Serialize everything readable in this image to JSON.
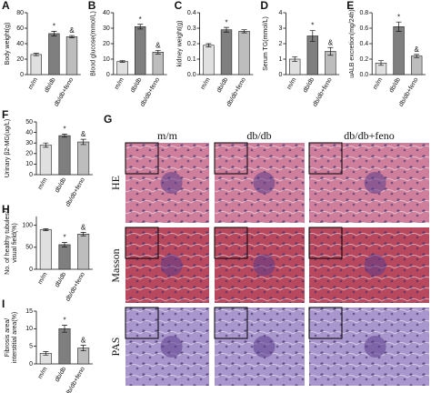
{
  "chart_data": [
    {
      "type": "bar",
      "panel": "A",
      "y_label": "Body weight(g)",
      "categories": [
        "m/m",
        "db/db",
        "db/db+feno"
      ],
      "values": [
        26,
        53,
        49
      ],
      "errors": [
        1.5,
        3,
        1.5
      ],
      "colors": [
        "#e0e0e0",
        "#7f7f7f",
        "#bdbdbd"
      ],
      "ylim": [
        0,
        80
      ],
      "yticks": [
        0,
        20,
        40,
        60,
        80
      ],
      "annotations": [
        {
          "text": "*",
          "x": "db/db"
        },
        {
          "text": "&",
          "x": "db/db+feno"
        }
      ]
    },
    {
      "type": "bar",
      "panel": "B",
      "y_label": "Blood glucose(mmol/L)",
      "categories": [
        "m/m",
        "db/db",
        "db/db+feno"
      ],
      "values": [
        8.5,
        31,
        14.5
      ],
      "errors": [
        0.5,
        1.5,
        1.2
      ],
      "colors": [
        "#e0e0e0",
        "#7f7f7f",
        "#bdbdbd"
      ],
      "ylim": [
        0,
        40
      ],
      "yticks": [
        0,
        10,
        20,
        30,
        40
      ],
      "annotations": [
        {
          "text": "*",
          "x": "db/db"
        },
        {
          "text": "&",
          "x": "db/db+feno"
        }
      ]
    },
    {
      "type": "bar",
      "panel": "C",
      "y_label": "kidney weight(g)",
      "categories": [
        "m/m",
        "db/db",
        "db/db+feno"
      ],
      "values": [
        0.19,
        0.29,
        0.28
      ],
      "errors": [
        0.01,
        0.015,
        0.01
      ],
      "colors": [
        "#e0e0e0",
        "#7f7f7f",
        "#bdbdbd"
      ],
      "ylim": [
        0,
        0.4
      ],
      "yticks": [
        {
          "value": 0,
          "label": "0.0"
        },
        0.1,
        0.2,
        0.3,
        0.4
      ],
      "annotations": [
        {
          "text": "*",
          "x": "db/db"
        }
      ]
    },
    {
      "type": "bar",
      "panel": "D",
      "y_label": "Serum TG(mmol/L)",
      "categories": [
        "m/m",
        "db/db",
        "db/db+feno"
      ],
      "values": [
        1.0,
        2.5,
        1.5
      ],
      "errors": [
        0.15,
        0.35,
        0.25
      ],
      "colors": [
        "#e0e0e0",
        "#7f7f7f",
        "#bdbdbd"
      ],
      "ylim": [
        0,
        4
      ],
      "yticks": [
        0,
        1,
        2,
        3,
        4
      ],
      "annotations": [
        {
          "text": "*",
          "x": "db/db"
        },
        {
          "text": "&",
          "x": "db/db+feno"
        }
      ]
    },
    {
      "type": "bar",
      "panel": "E",
      "y_label": "uALB excretion(mg/24h)",
      "categories": [
        "m/m",
        "db/db",
        "db/db+feno"
      ],
      "values": [
        0.15,
        0.62,
        0.24
      ],
      "errors": [
        0.03,
        0.06,
        0.02
      ],
      "colors": [
        "#e0e0e0",
        "#7f7f7f",
        "#bdbdbd"
      ],
      "ylim": [
        0,
        0.8
      ],
      "yticks": [
        {
          "value": 0,
          "label": "0.0"
        },
        0.2,
        0.4,
        0.6,
        0.8
      ],
      "annotations": [
        {
          "text": "*",
          "x": "db/db"
        },
        {
          "text": "&",
          "x": "db/db+feno"
        }
      ]
    },
    {
      "type": "bar",
      "panel": "F",
      "y_label": "Urinary β2-MG(ug/L)",
      "categories": [
        "m/m",
        "db/db",
        "db/db+feno"
      ],
      "values": [
        28,
        37,
        31
      ],
      "errors": [
        2,
        1.5,
        2.5
      ],
      "colors": [
        "#e0e0e0",
        "#7f7f7f",
        "#bdbdbd"
      ],
      "ylim": [
        0,
        50
      ],
      "yticks": [
        0,
        10,
        20,
        30,
        40,
        50
      ],
      "annotations": [
        {
          "text": "*",
          "x": "db/db"
        },
        {
          "text": "&",
          "x": "db/db+feno"
        }
      ]
    },
    {
      "type": "bar",
      "panel": "H",
      "y_label": [
        "No. of healthy tubules/",
        "visual field(%)"
      ],
      "categories": [
        "m/m",
        "db/db",
        "db/db+feno"
      ],
      "values": [
        90,
        56,
        80
      ],
      "errors": [
        2,
        5,
        4
      ],
      "colors": [
        "#e0e0e0",
        "#7f7f7f",
        "#bdbdbd"
      ],
      "ylim": [
        0,
        120
      ],
      "yticks": [
        0,
        50,
        100
      ],
      "annotations": [
        {
          "text": "*",
          "x": "db/db"
        },
        {
          "text": "&",
          "x": "db/db+feno"
        }
      ]
    },
    {
      "type": "bar",
      "panel": "I",
      "y_label": [
        "Fibrosis area/",
        "interstitial area(%)"
      ],
      "categories": [
        "m/m",
        "db/db",
        "db/db+feno"
      ],
      "values": [
        3,
        10,
        4.5
      ],
      "errors": [
        0.5,
        1,
        0.8
      ],
      "colors": [
        "#e0e0e0",
        "#7f7f7f",
        "#bdbdbd"
      ],
      "ylim": [
        0,
        15
      ],
      "yticks": [
        0,
        5,
        10,
        15
      ],
      "annotations": [
        {
          "text": "*",
          "x": "db/db"
        },
        {
          "text": "&",
          "x": "db/db+feno"
        }
      ]
    }
  ],
  "panel_g": {
    "label": "G",
    "columns": [
      "m/m",
      "db/db",
      "db/db+feno"
    ],
    "rows": [
      "HE",
      "Masson",
      "PAS"
    ]
  }
}
